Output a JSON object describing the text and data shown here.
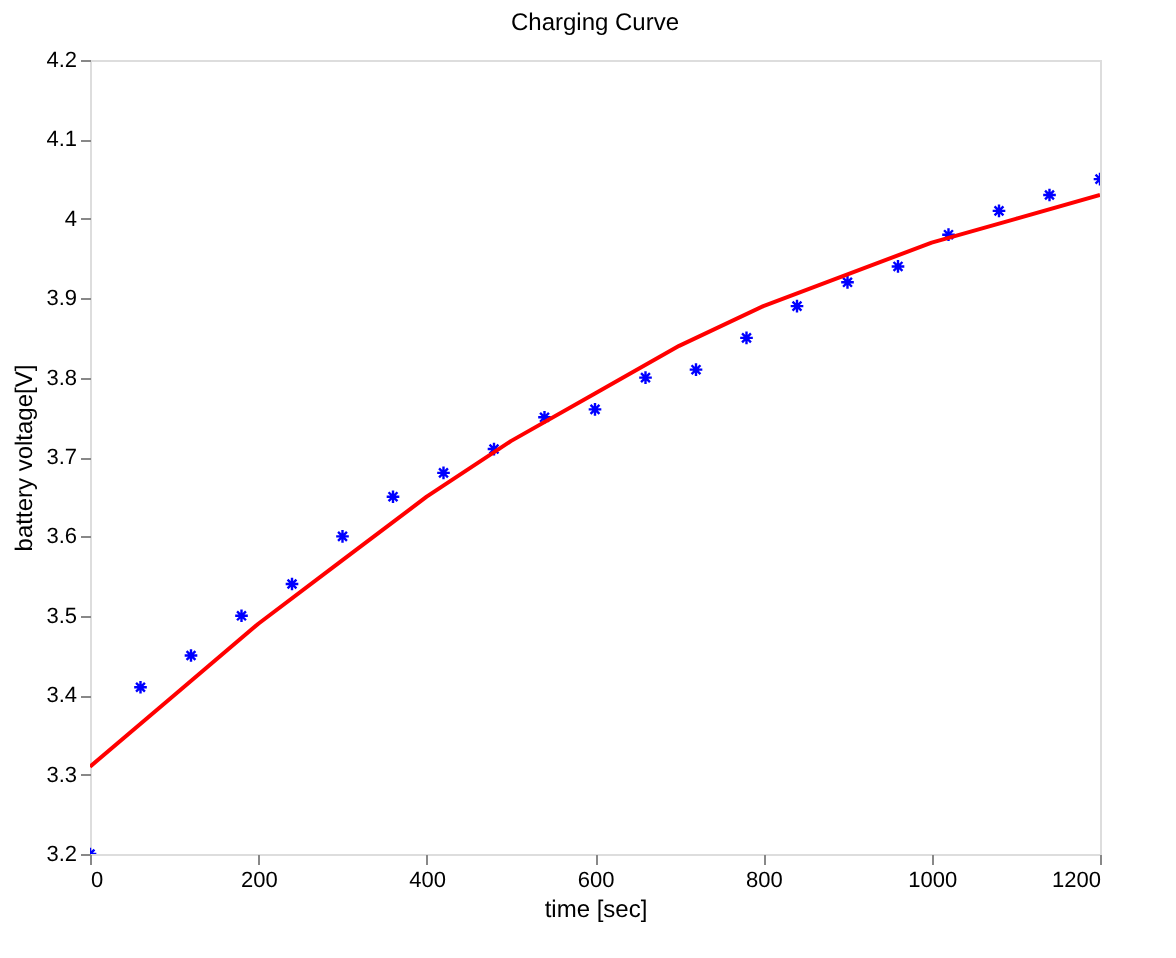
{
  "chart_data": {
    "type": "scatter",
    "title": "Charging Curve",
    "xlabel": "time [sec]",
    "ylabel": "battery voltage[V]",
    "xlim": [
      0,
      1200
    ],
    "ylim": [
      3.2,
      4.2
    ],
    "xticks": [
      0,
      200,
      400,
      600,
      800,
      1000,
      1200
    ],
    "yticks": [
      3.2,
      3.3,
      3.4,
      3.5,
      3.6,
      3.7,
      3.8,
      3.9,
      4,
      4.1,
      4.2
    ],
    "grid": false,
    "series": [
      {
        "color": "#0000ff",
        "marker": "cross",
        "x": [
          0,
          60,
          120,
          180,
          240,
          300,
          360,
          420,
          480,
          540,
          600,
          660,
          720,
          780,
          840,
          900,
          960,
          1020,
          1080,
          1140,
          1200
        ],
        "values": [
          3.2,
          3.41,
          3.45,
          3.5,
          3.54,
          3.6,
          3.65,
          3.68,
          3.71,
          3.75,
          3.76,
          3.8,
          3.81,
          3.85,
          3.89,
          3.92,
          3.94,
          3.98,
          4.01,
          4.03,
          4.05
        ]
      },
      {
        "type": "line",
        "color": "#ff0000",
        "marker": "none",
        "line_style": "solid",
        "x": [
          0,
          100,
          200,
          300,
          400,
          500,
          600,
          700,
          800,
          900,
          1000,
          1100,
          1200
        ],
        "values": [
          3.31,
          3.4,
          3.49,
          3.57,
          3.65,
          3.72,
          3.78,
          3.84,
          3.89,
          3.93,
          3.97,
          4.0,
          4.03
        ]
      }
    ]
  }
}
